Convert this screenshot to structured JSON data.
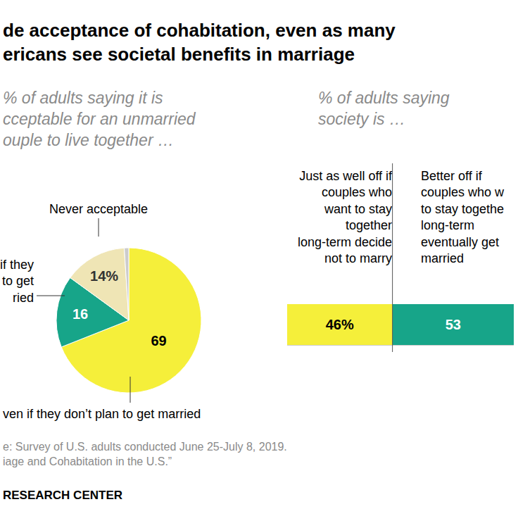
{
  "title": "de acceptance of cohabitation, even as many\nericans see societal benefits in marriage",
  "chart_data": [
    {
      "type": "pie",
      "subtitle": "% of adults saying it is\ncceptable for an unmarried\nouple to live together …",
      "categories": [
        "ven if they don’t plan to get married",
        "if they\nto get\nried",
        "Never acceptable",
        null
      ],
      "values": [
        69,
        16,
        14,
        1
      ],
      "value_labels": [
        "69",
        "16",
        "14%",
        null
      ],
      "colors": [
        "#f5ef3a",
        "#17a589",
        "#efe5b5",
        "#cccccc"
      ],
      "data_labels": true
    },
    {
      "type": "bar",
      "subtitle": "% of adults saying\nsociety is …",
      "orientation": "horizontal",
      "stacked": true,
      "data_labels": true,
      "tick_labels": false,
      "categories": [
        null
      ],
      "xlim": [
        0,
        99
      ],
      "series": [
        {
          "name": "Just as well off if\ncouples who\nwant to stay\ntogether\nlong-term decide\nnot to marry",
          "color": "#f5ef3a",
          "values": [
            46
          ],
          "value_labels": [
            "46%"
          ]
        },
        {
          "name": "Better off if\ncouples who w\nto stay togethe\nlong-term\neventually get\nmarried",
          "color": "#17a589",
          "values": [
            53
          ],
          "value_labels": [
            "53"
          ]
        }
      ]
    }
  ],
  "source": [
    "e: Survey of U.S. adults conducted June 25-July 8, 2019.",
    "iage and Cohabitation in the U.S.”"
  ],
  "credit": "RESEARCH CENTER"
}
